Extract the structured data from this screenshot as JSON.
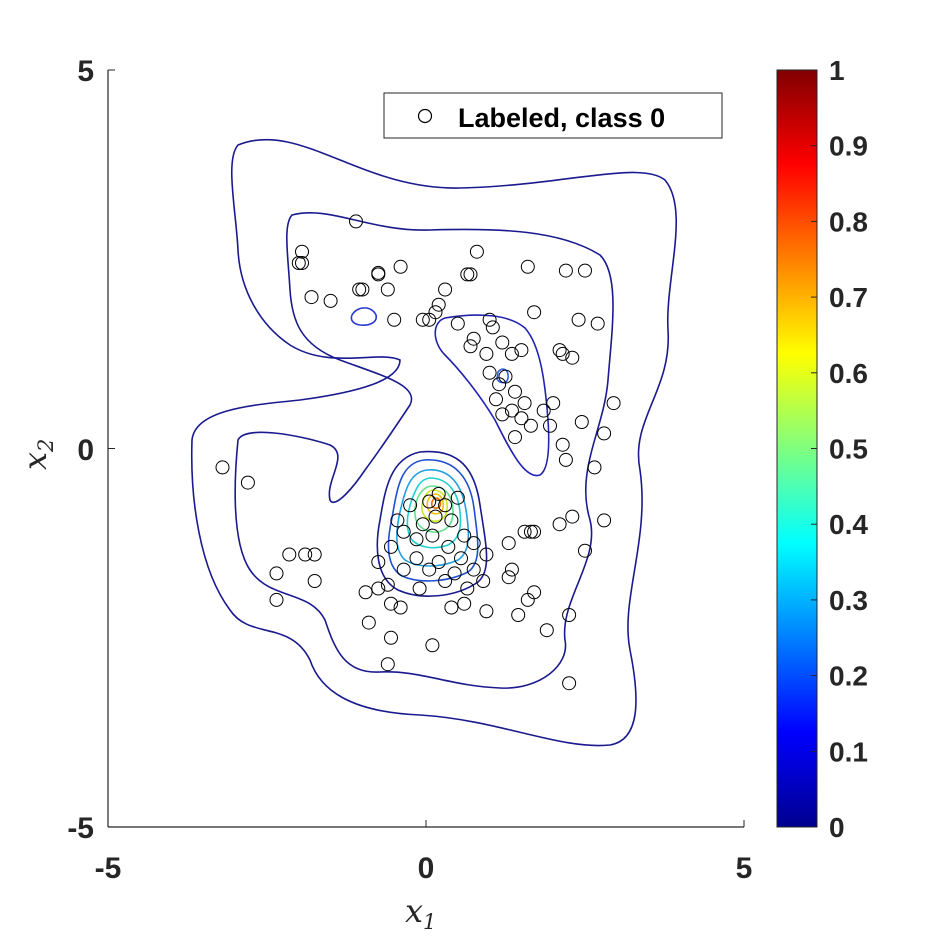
{
  "chart_data": {
    "type": "scatter",
    "title": "",
    "xlabel": "x",
    "xlabel_sub": "1",
    "ylabel": "x",
    "ylabel_sub": "2",
    "xlim": [
      -5,
      5
    ],
    "ylim": [
      -5,
      5
    ],
    "xticks": [
      "-5",
      "0",
      "5"
    ],
    "yticks": [
      "-5",
      "0",
      "5"
    ],
    "grid": false,
    "legend": {
      "placement": "top-right",
      "entries": [
        "Labeled, class 0"
      ]
    },
    "colorbar": {
      "range": [
        0,
        1
      ],
      "ticks": [
        "0",
        "0.1",
        "0.2",
        "0.3",
        "0.4",
        "0.5",
        "0.6",
        "0.7",
        "0.8",
        "0.9",
        "1"
      ],
      "colormap": "jet"
    },
    "series": [
      {
        "name": "Labeled, class 0",
        "marker": "circle-open",
        "color": "#000000",
        "points": [
          [
            -1.1,
            3.0
          ],
          [
            -1.95,
            2.6
          ],
          [
            -1.95,
            2.45
          ],
          [
            -2.0,
            2.45
          ],
          [
            -0.75,
            2.3
          ],
          [
            -0.75,
            2.32
          ],
          [
            -0.4,
            2.4
          ],
          [
            -1.05,
            2.1
          ],
          [
            -1.0,
            2.1
          ],
          [
            -1.8,
            2.0
          ],
          [
            -1.5,
            1.95
          ],
          [
            -0.6,
            2.1
          ],
          [
            0.3,
            2.1
          ],
          [
            0.65,
            2.3
          ],
          [
            0.7,
            2.3
          ],
          [
            0.8,
            2.6
          ],
          [
            1.6,
            2.4
          ],
          [
            2.2,
            2.35
          ],
          [
            2.5,
            2.35
          ],
          [
            1.7,
            1.8
          ],
          [
            2.4,
            1.7
          ],
          [
            2.7,
            1.65
          ],
          [
            0.2,
            1.9
          ],
          [
            0.15,
            1.8
          ],
          [
            -0.5,
            1.7
          ],
          [
            -0.05,
            1.7
          ],
          [
            0.05,
            1.7
          ],
          [
            0.5,
            1.65
          ],
          [
            1.0,
            1.7
          ],
          [
            1.05,
            1.6
          ],
          [
            0.75,
            1.45
          ],
          [
            0.7,
            1.35
          ],
          [
            0.95,
            1.25
          ],
          [
            1.2,
            1.4
          ],
          [
            1.35,
            1.25
          ],
          [
            1.5,
            1.3
          ],
          [
            2.1,
            1.3
          ],
          [
            2.15,
            1.25
          ],
          [
            2.3,
            1.2
          ],
          [
            1.0,
            1.0
          ],
          [
            1.15,
            0.85
          ],
          [
            1.25,
            0.95
          ],
          [
            1.4,
            0.75
          ],
          [
            1.1,
            0.65
          ],
          [
            1.35,
            0.5
          ],
          [
            1.55,
            0.6
          ],
          [
            1.2,
            0.45
          ],
          [
            1.5,
            0.4
          ],
          [
            1.85,
            0.5
          ],
          [
            2.0,
            0.6
          ],
          [
            1.65,
            0.3
          ],
          [
            1.4,
            0.15
          ],
          [
            1.95,
            0.3
          ],
          [
            2.15,
            0.05
          ],
          [
            2.45,
            0.35
          ],
          [
            2.8,
            0.2
          ],
          [
            2.95,
            0.6
          ],
          [
            2.65,
            -0.25
          ],
          [
            2.2,
            -0.15
          ],
          [
            -2.8,
            -0.45
          ],
          [
            -3.2,
            -0.25
          ],
          [
            -2.15,
            -1.4
          ],
          [
            -1.9,
            -1.4
          ],
          [
            -1.75,
            -1.4
          ],
          [
            -2.35,
            -1.65
          ],
          [
            -1.75,
            -1.75
          ],
          [
            -2.35,
            -2.0
          ],
          [
            1.55,
            -1.1
          ],
          [
            1.65,
            -1.1
          ],
          [
            1.7,
            -1.1
          ],
          [
            2.1,
            -1.0
          ],
          [
            2.3,
            -0.9
          ],
          [
            2.8,
            -0.95
          ],
          [
            2.5,
            -1.35
          ],
          [
            1.3,
            -1.25
          ],
          [
            1.35,
            -1.6
          ],
          [
            1.3,
            -1.7
          ],
          [
            1.7,
            -1.9
          ],
          [
            1.6,
            -2.0
          ],
          [
            1.45,
            -2.2
          ],
          [
            2.25,
            -2.2
          ],
          [
            1.9,
            -2.4
          ],
          [
            2.25,
            -3.1
          ],
          [
            -0.95,
            -1.9
          ],
          [
            -0.75,
            -1.85
          ],
          [
            -0.55,
            -2.05
          ],
          [
            -0.4,
            -2.1
          ],
          [
            0.4,
            -2.1
          ],
          [
            0.6,
            -2.05
          ],
          [
            0.95,
            -2.15
          ],
          [
            -0.55,
            -2.5
          ],
          [
            0.1,
            -2.6
          ],
          [
            -0.6,
            -2.85
          ],
          [
            -0.9,
            -2.3
          ],
          [
            0.2,
            -0.6
          ],
          [
            0.3,
            -0.75
          ],
          [
            0.15,
            -0.9
          ],
          [
            0.4,
            -0.95
          ],
          [
            0.05,
            -0.7
          ],
          [
            -0.05,
            -1.0
          ],
          [
            -0.15,
            -1.2
          ],
          [
            0.1,
            -1.15
          ],
          [
            0.6,
            -1.15
          ],
          [
            -0.35,
            -1.1
          ],
          [
            0.35,
            -1.3
          ],
          [
            0.75,
            -1.25
          ],
          [
            -0.55,
            -1.3
          ],
          [
            -0.15,
            -1.45
          ],
          [
            0.2,
            -1.5
          ],
          [
            0.55,
            -1.45
          ],
          [
            0.95,
            -1.4
          ],
          [
            -0.75,
            -1.5
          ],
          [
            -0.35,
            -1.6
          ],
          [
            0.05,
            -1.6
          ],
          [
            0.45,
            -1.65
          ],
          [
            0.75,
            -1.6
          ],
          [
            -0.6,
            -1.8
          ],
          [
            -0.1,
            -1.85
          ],
          [
            0.3,
            -1.75
          ],
          [
            0.65,
            -1.85
          ],
          [
            0.9,
            -1.75
          ],
          [
            -0.45,
            -0.95
          ],
          [
            0.5,
            -0.65
          ],
          [
            -0.25,
            -0.75
          ]
        ]
      }
    ]
  }
}
